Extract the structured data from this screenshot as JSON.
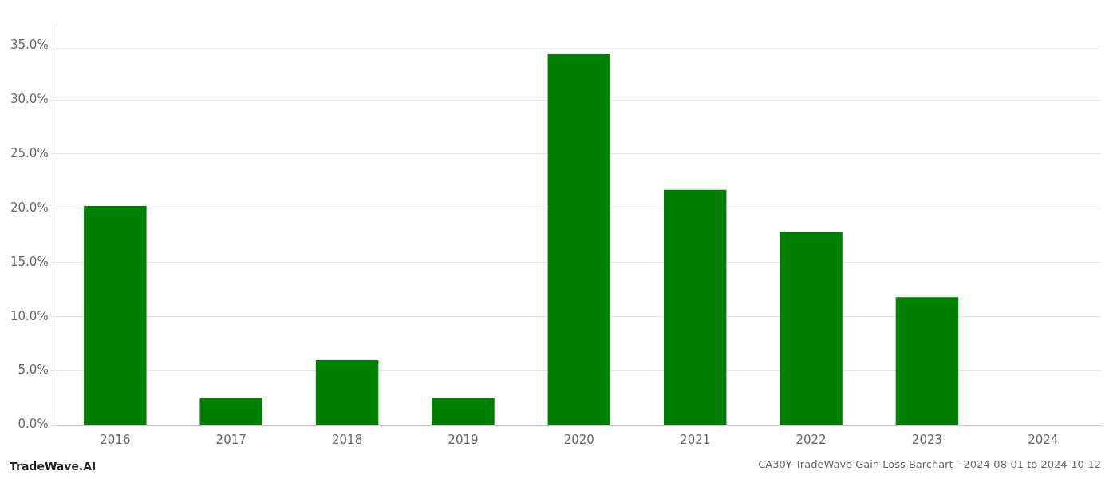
{
  "chart_data": {
    "type": "bar",
    "title": "CA30Y TradeWave Gain Loss Barchart - 2024-08-01 to 2024-10-12",
    "annotations": [
      "TradeWave.AI"
    ],
    "categories": [
      "2016",
      "2017",
      "2018",
      "2019",
      "2020",
      "2021",
      "2022",
      "2023",
      "2024"
    ],
    "values": [
      0.202,
      0.025,
      0.06,
      0.025,
      0.342,
      0.217,
      0.178,
      0.118,
      0.0
    ],
    "color": "#008000",
    "ylim": [
      0,
      0.37
    ],
    "yticks": [
      {
        "value": 0.0,
        "label": "0.0%"
      },
      {
        "value": 0.05,
        "label": "5.0%"
      },
      {
        "value": 0.1,
        "label": "10.0%"
      },
      {
        "value": 0.15,
        "label": "15.0%"
      },
      {
        "value": 0.2,
        "label": "20.0%"
      },
      {
        "value": 0.25,
        "label": "25.0%"
      },
      {
        "value": 0.3,
        "label": "30.0%"
      },
      {
        "value": 0.35,
        "label": "35.0%"
      }
    ],
    "grid": true
  }
}
